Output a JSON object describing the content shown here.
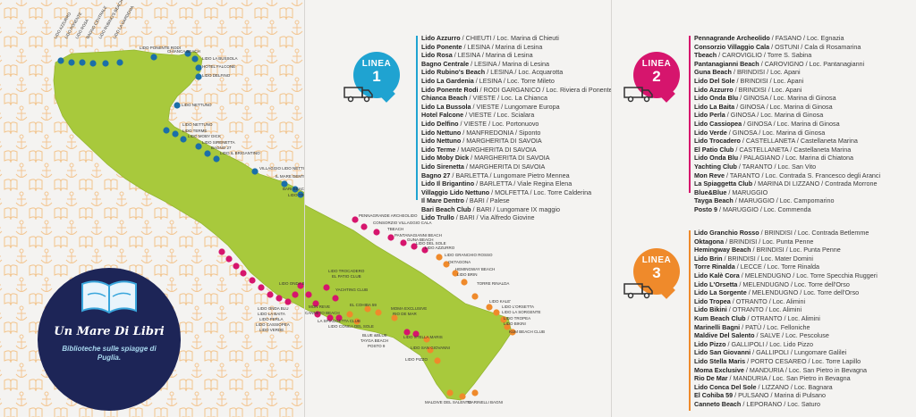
{
  "brand": {
    "title": "Un Mare Di Libri",
    "subtitle": "Biblioteche sulle spiagge di Puglia."
  },
  "colors": {
    "linea1": "#1fa3d1",
    "linea2": "#d6156d",
    "linea3": "#ef8a2b",
    "land": "#a8c93c",
    "navy": "#1d2557"
  },
  "linea1": {
    "label": "LINEA",
    "number": "1",
    "icon": "truck-icon",
    "items": [
      {
        "name": "Lido Azzurro",
        "loc": " / CHIEUTI / Loc. Marina di Chieuti"
      },
      {
        "name": "Lido Ponente",
        "loc": " / LESINA / Marina di Lesina"
      },
      {
        "name": "Lido Rosa",
        "loc": " / LESINA / Marina di Lesina"
      },
      {
        "name": "Bagno Centrale",
        "loc": " / LESINA / Marina di Lesina"
      },
      {
        "name": "Lido Rubino's Beach",
        "loc": " / LESINA / Loc. Acquarotta"
      },
      {
        "name": "Lido La Gardenia",
        "loc": " / LESINA / Loc. Torre Mileto"
      },
      {
        "name": "Lido Ponente Rodi",
        "loc": " / RODI GARGANICO / Loc. Riviera di Ponente"
      },
      {
        "name": "Chianca Beach",
        "loc": " / VIESTE / Loc. La Chianca"
      },
      {
        "name": "Lido La Bussola",
        "loc": " / VIESTE / Lungomare Europa"
      },
      {
        "name": "Hotel Falcone",
        "loc": " / VIESTE / Loc. Scialara"
      },
      {
        "name": "Lido Delfino",
        "loc": " / VIESTE / Loc. Portonuovo"
      },
      {
        "name": "Lido Nettuno",
        "loc": " / MANFREDONIA / Siponto"
      },
      {
        "name": "Lido Nettuno",
        "loc": " / MARGHERITA DI SAVOIA"
      },
      {
        "name": "Lido Terme",
        "loc": " / MARGHERITA DI SAVOIA"
      },
      {
        "name": "Lido Moby Dick",
        "loc": " / MARGHERITA DI SAVOIA"
      },
      {
        "name": "Lido Sirenetta",
        "loc": " / MARGHERITA DI SAVOIA"
      },
      {
        "name": "Bagno 27",
        "loc": " / BARLETTA / Lungomare Pietro Mennea"
      },
      {
        "name": "Lido Il Brigantino",
        "loc": " / BARLETTA / Viale Regina Elena"
      },
      {
        "name": "Villaggio Lido Nettuno",
        "loc": " / MOLFETTA / Loc. Torre Calderina"
      },
      {
        "name": "Il Mare Dentro",
        "loc": " / BARI / Palese"
      },
      {
        "name": "Bari Beach Club",
        "loc": " / BARI / Lungomare IX maggio"
      },
      {
        "name": "Lido Trullo",
        "loc": " / BARI / Via Alfredo Giovine"
      }
    ]
  },
  "linea2": {
    "label": "LINEA",
    "number": "2",
    "icon": "truck-icon",
    "items": [
      {
        "name": "Pennagrande Archeolido",
        "loc": " / FASANO / Loc. Egnazia"
      },
      {
        "name": "Consorzio Villaggio Cala",
        "loc": " / OSTUNI / Cala di Rosamarina"
      },
      {
        "name": "Tbeach",
        "loc": " / CAROVIGLIO / Torre S. Sabina"
      },
      {
        "name": "Pantanagianni Beach",
        "loc": " / CAROVIGNO / Loc. Pantanagianni"
      },
      {
        "name": "Guna Beach",
        "loc": " / BRINDISI / Loc. Apani"
      },
      {
        "name": "Lido Del Sole",
        "loc": " / BRINDISI / Loc. Apani"
      },
      {
        "name": "Lido Azzurro",
        "loc": " / BRINDISI / Loc. Apani"
      },
      {
        "name": "Lido Onda Blu",
        "loc": " / GINOSA / Loc. Marina di Ginosa"
      },
      {
        "name": "Lido La Baita",
        "loc": " / GINOSA / Loc. Marina di Ginosa"
      },
      {
        "name": "Lido Perla",
        "loc": " / GINOSA / Loc. Marina di Ginosa"
      },
      {
        "name": "Lido Cassiopea",
        "loc": " / GINOSA / Loc. Marina di Ginosa"
      },
      {
        "name": "Lido Verde",
        "loc": " / GINOSA / Loc. Marina di Ginosa"
      },
      {
        "name": "Lido Trocadero",
        "loc": " / CASTELLANETA / Castellaneta Marina"
      },
      {
        "name": "El Patio Club",
        "loc": " / CASTELLANETA / Castellaneta Marina"
      },
      {
        "name": "Lido Onda Blu",
        "loc": " / PALAGIANO / Loc. Marina di Chiatona"
      },
      {
        "name": "Yachting Club",
        "loc": " / TARANTO / Loc. San Vito"
      },
      {
        "name": "Mon Reve",
        "loc": " / TARANTO / Loc. Contrada S. Francesco degli Aranci"
      },
      {
        "name": "La Spiaggetta Club",
        "loc": " / MARINA DI LIZZANO / Contrada Morrone"
      },
      {
        "name": "Blue&Blue",
        "loc": " / MARUGGIO"
      },
      {
        "name": "Tayga Beach",
        "loc": " / MARUGGIO / Loc. Campomarino"
      },
      {
        "name": "Posto 9",
        "loc": " / MARUGGIO / Loc. Commenda"
      }
    ]
  },
  "linea3": {
    "label": "LINEA",
    "number": "3",
    "icon": "truck-icon",
    "items": [
      {
        "name": "Lido Granchio Rosso",
        "loc": " / BRINDISI / Loc. Contrada Betlemme"
      },
      {
        "name": "Oktagona",
        "loc": " / BRINDISI / Loc. Punta Penne"
      },
      {
        "name": "Hemingway Beach",
        "loc": " / BRINDISI / Loc. Punta Penne"
      },
      {
        "name": "Lido Brin",
        "loc": " / BRINDISI / Loc. Mater Domini"
      },
      {
        "name": "Torre Rinalda",
        "loc": " / LECCE / Loc. Torre Rinalda"
      },
      {
        "name": "Lido Kalè Cora",
        "loc": " / MELENDUGNO / Loc. Torre Specchia Ruggeri"
      },
      {
        "name": "Lido L'Orsetta",
        "loc": " / MELENDUGNO / Loc. Torre dell'Orso"
      },
      {
        "name": "Lido La Sorgente",
        "loc": " / MELENDUGNO / Loc. Torre dell'Orso"
      },
      {
        "name": "Lido Tropea",
        "loc": " / OTRANTO / Loc. Alimini"
      },
      {
        "name": "Lido Bikini",
        "loc": " / OTRANTO / Loc. Alimini"
      },
      {
        "name": "Kum Beach Club",
        "loc": " / OTRANTO / Loc. Alimini"
      },
      {
        "name": "Marinelli Bagni",
        "loc": " / PATÙ / Loc. Felloniche"
      },
      {
        "name": "Maldive Del Salento",
        "loc": " / SALVE / Loc. Pescoluse"
      },
      {
        "name": "Lido Pizzo",
        "loc": " / GALLIPOLI / Loc. Lido Pizzo"
      },
      {
        "name": "Lido San Giovanni",
        "loc": " / GALLIPOLI / Lungomare Galilei"
      },
      {
        "name": "Lido Stella Maris",
        "loc": " / PORTO CESAREO / Loc. Torre Lapillo"
      },
      {
        "name": "Moma Exclusive",
        "loc": " / MANDURIA / Loc. San Pietro in Bevagna"
      },
      {
        "name": "Rio De Mar",
        "loc": " / MANDURIA / Loc. San Pietro in Bevagna"
      },
      {
        "name": "Lido Conca Del Sole",
        "loc": " / LIZZANO / Loc. Bagnara"
      },
      {
        "name": "El Cohiba 59",
        "loc": " / PULSANO / Marina di Pulsano"
      },
      {
        "name": "Canneto Beach",
        "loc": " / LEPORANO / Loc. Saturo"
      }
    ]
  },
  "map_labels": [
    {
      "text": "LIDO AZZURRO",
      "color": "blue"
    },
    {
      "text": "LIDO PONENTE",
      "color": "blue"
    },
    {
      "text": "LIDO ROSA",
      "color": "blue"
    },
    {
      "text": "BAGNO CENTRALE",
      "color": "blue"
    },
    {
      "text": "LIDO RUBINO'S BEACH",
      "color": "blue"
    },
    {
      "text": "LIDO LA GARDENIA",
      "color": "blue"
    },
    {
      "text": "LIDO PONENTE RODI",
      "color": "blue"
    },
    {
      "text": "CHIANCA BEACH",
      "color": "blue"
    },
    {
      "text": "LIDO LA BUSSOLA",
      "color": "blue"
    },
    {
      "text": "HOTEL FALCONE",
      "color": "blue"
    },
    {
      "text": "LIDO DELFINO",
      "color": "blue"
    },
    {
      "text": "LIDO NETTUNO",
      "color": "blue"
    },
    {
      "text": "LIDO NETTUNO",
      "color": "blue"
    },
    {
      "text": "LIDO TERME",
      "color": "blue"
    },
    {
      "text": "LIDO MOBY DICK",
      "color": "blue"
    },
    {
      "text": "LIDO SIRENETTA",
      "color": "blue"
    },
    {
      "text": "BAGNO 27",
      "color": "blue"
    },
    {
      "text": "LIDO IL BRIGANTINO",
      "color": "blue"
    },
    {
      "text": "VILLAGGIO LIDO NETTUNO",
      "color": "blue"
    },
    {
      "text": "IL MARE DENTRO",
      "color": "blue"
    },
    {
      "text": "BARI BEACH CLUB",
      "color": "blue"
    },
    {
      "text": "LIDO TRULLO",
      "color": "blue"
    },
    {
      "text": "PENNAGRANDE ARCHEOLIDO",
      "color": "pink"
    },
    {
      "text": "CONSORZIO VILLAGGIO CALA",
      "color": "pink"
    },
    {
      "text": "TBEACH",
      "color": "pink"
    },
    {
      "text": "PANTANAGIANNI BEACH",
      "color": "pink"
    },
    {
      "text": "GUNA BEACH",
      "color": "pink"
    },
    {
      "text": "LIDO DEL SOLE",
      "color": "pink"
    },
    {
      "text": "LIDO AZZURRO",
      "color": "pink"
    },
    {
      "text": "LIDO GRANCHIO ROSSO",
      "color": "orange"
    },
    {
      "text": "OKTAGONA",
      "color": "orange"
    },
    {
      "text": "HEMINGWAY BEACH",
      "color": "orange"
    },
    {
      "text": "LIDO BRIN",
      "color": "orange"
    },
    {
      "text": "TORRE RINALDA",
      "color": "orange"
    },
    {
      "text": "LIDO KALE'",
      "color": "orange"
    },
    {
      "text": "LIDO L'ORSETTA",
      "color": "orange"
    },
    {
      "text": "LIDO LA SORGENTE",
      "color": "orange"
    },
    {
      "text": "LIDO TROPEA",
      "color": "orange"
    },
    {
      "text": "LIDO BIKINI",
      "color": "orange"
    },
    {
      "text": "KUM BEACH CLUB",
      "color": "orange"
    },
    {
      "text": "LIDO TROCADERO",
      "color": "pink"
    },
    {
      "text": "EL PATIO CLUB",
      "color": "pink"
    },
    {
      "text": "LIDO ONDA BLU",
      "color": "pink"
    },
    {
      "text": "YACHTING CLUB",
      "color": "pink"
    },
    {
      "text": "MON REVE",
      "color": "pink"
    },
    {
      "text": "LIDO ONDA BLU",
      "color": "pink"
    },
    {
      "text": "LIDO LA BAITA",
      "color": "pink"
    },
    {
      "text": "LIDO PERLA",
      "color": "pink"
    },
    {
      "text": "LIDO CASSIOPEA",
      "color": "pink"
    },
    {
      "text": "LIDO VERDE",
      "color": "pink"
    },
    {
      "text": "CANNETO BEACH",
      "color": "orange"
    },
    {
      "text": "EL COHIBA 59",
      "color": "orange"
    },
    {
      "text": "LA SPIAGGETTA CLUB",
      "color": "pink"
    },
    {
      "text": "LIDO CONCA DEL SOLE",
      "color": "orange"
    },
    {
      "text": "MOMA EXCLUSIVE",
      "color": "orange"
    },
    {
      "text": "RIO DE MAR",
      "color": "orange"
    },
    {
      "text": "BLUE &BLUE",
      "color": "pink"
    },
    {
      "text": "TAYGA BEACH",
      "color": "pink"
    },
    {
      "text": "POSTO 9",
      "color": "pink"
    },
    {
      "text": "LIDO STELLA MARIS",
      "color": "orange"
    },
    {
      "text": "LIDO SAN GIOVANNI",
      "color": "orange"
    },
    {
      "text": "LIDO PIZZO",
      "color": "orange"
    },
    {
      "text": "MALDIVE DEL SALENTO",
      "color": "orange"
    },
    {
      "text": "MARINELLI BAGNI",
      "color": "orange"
    }
  ]
}
